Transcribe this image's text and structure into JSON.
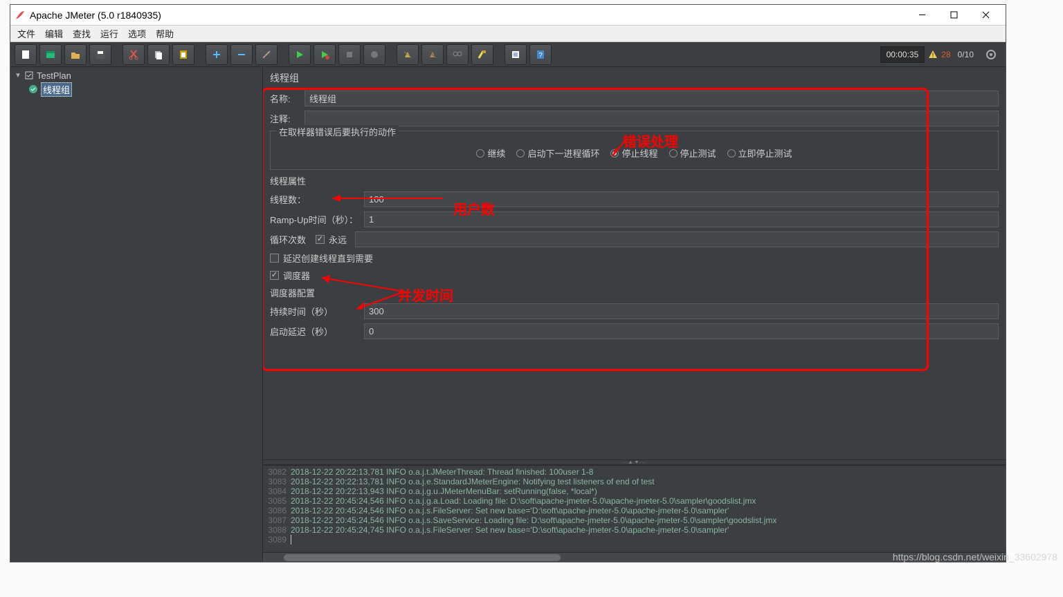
{
  "window": {
    "title": "Apache JMeter (5.0 r1840935)"
  },
  "menu": [
    "文件",
    "编辑",
    "查找",
    "运行",
    "选项",
    "帮助"
  ],
  "status": {
    "timer": "00:00:35",
    "warn_count": "28",
    "ratio": "0/10"
  },
  "tree": {
    "root": "TestPlan",
    "child": "线程组"
  },
  "panel": {
    "title": "线程组",
    "name_label": "名称:",
    "name_value": "线程组",
    "comment_label": "注释:",
    "comment_value": "",
    "error_group": "在取样器错误后要执行的动作",
    "radios": [
      {
        "label": "继续",
        "on": false
      },
      {
        "label": "启动下一进程循环",
        "on": false
      },
      {
        "label": "停止线程",
        "on": true
      },
      {
        "label": "停止测试",
        "on": false
      },
      {
        "label": "立即停止测试",
        "on": false
      }
    ],
    "thread_props": "线程属性",
    "threads_label": "线程数：",
    "threads_value": "100",
    "ramp_label": "Ramp-Up时间（秒）：",
    "ramp_value": "1",
    "loop_label": "循环次数",
    "forever_label": "永远",
    "delay_label": "延迟创建线程直到需要",
    "scheduler_label": "调度器",
    "scheduler_cfg": "调度器配置",
    "duration_label": "持续时间（秒）",
    "duration_value": "300",
    "startup_label": "启动延迟（秒）",
    "startup_value": "0"
  },
  "annotations": {
    "error": "错误处理",
    "users": "用户数",
    "duration": "并发时间"
  },
  "log": [
    {
      "n": "3082",
      "t": "2018-12-22 20:22:13,781 INFO o.a.j.t.JMeterThread: Thread finished: 100user 1-8"
    },
    {
      "n": "3083",
      "t": "2018-12-22 20:22:13,781 INFO o.a.j.e.StandardJMeterEngine: Notifying test listeners of end of test"
    },
    {
      "n": "3084",
      "t": "2018-12-22 20:22:13,943 INFO o.a.j.g.u.JMeterMenuBar: setRunning(false, *local*)"
    },
    {
      "n": "3085",
      "t": "2018-12-22 20:45:24,546 INFO o.a.j.g.a.Load: Loading file: D:\\soft\\apache-jmeter-5.0\\apache-jmeter-5.0\\sampler\\goodslist.jmx"
    },
    {
      "n": "3086",
      "t": "2018-12-22 20:45:24,546 INFO o.a.j.s.FileServer: Set new base='D:\\soft\\apache-jmeter-5.0\\apache-jmeter-5.0\\sampler'"
    },
    {
      "n": "3087",
      "t": "2018-12-22 20:45:24,546 INFO o.a.j.s.SaveService: Loading file: D:\\soft\\apache-jmeter-5.0\\apache-jmeter-5.0\\sampler\\goodslist.jmx"
    },
    {
      "n": "3088",
      "t": "2018-12-22 20:45:24,745 INFO o.a.j.s.FileServer: Set new base='D:\\soft\\apache-jmeter-5.0\\apache-jmeter-5.0\\sampler'"
    },
    {
      "n": "3089",
      "t": ""
    }
  ],
  "watermark": "https://blog.csdn.net/weixin_33602978",
  "colors": {
    "accent_red": "#ff0000"
  }
}
